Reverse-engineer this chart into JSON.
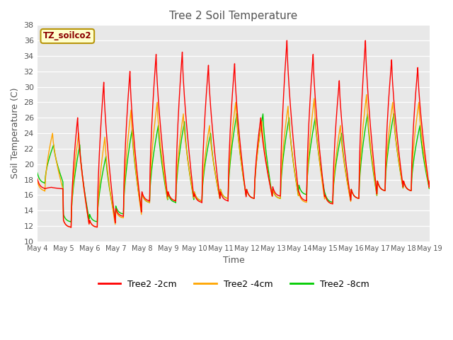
{
  "title": "Tree 2 Soil Temperature",
  "xlabel": "Time",
  "ylabel": "Soil Temperature (C)",
  "ylim": [
    10,
    38
  ],
  "yticks": [
    10,
    12,
    14,
    16,
    18,
    20,
    22,
    24,
    26,
    28,
    30,
    32,
    34,
    36,
    38
  ],
  "legend_label": "TZ_soilco2",
  "series_labels": [
    "Tree2 -2cm",
    "Tree2 -4cm",
    "Tree2 -8cm"
  ],
  "series_colors": [
    "#ff0000",
    "#ffa500",
    "#00cc00"
  ],
  "fig_bg": "#ffffff",
  "plot_bg": "#e8e8e8",
  "start_day": 4,
  "end_day": 19,
  "n_days": 15,
  "ppd": 48,
  "peaks_2cm": [
    17.0,
    26.0,
    30.6,
    32.0,
    34.2,
    34.5,
    32.8,
    33.0,
    26.0,
    36.0,
    34.2,
    30.8,
    36.0,
    33.5,
    32.5
  ],
  "mins_2cm": [
    16.8,
    11.8,
    11.8,
    13.2,
    15.2,
    15.2,
    15.0,
    15.2,
    15.5,
    15.8,
    15.2,
    14.8,
    15.5,
    16.5,
    16.5
  ],
  "peaks_4cm": [
    24.0,
    24.0,
    23.5,
    27.0,
    28.0,
    26.5,
    25.0,
    28.0,
    25.5,
    27.5,
    28.5,
    25.0,
    29.0,
    28.0,
    28.0
  ],
  "mins_4cm": [
    16.5,
    11.8,
    11.8,
    13.0,
    15.0,
    15.2,
    15.2,
    15.5,
    15.5,
    15.5,
    15.0,
    14.8,
    15.5,
    16.5,
    16.5
  ],
  "peaks_8cm": [
    22.5,
    22.5,
    21.0,
    24.5,
    25.0,
    25.5,
    24.0,
    26.5,
    26.5,
    26.0,
    26.0,
    24.0,
    26.5,
    26.5,
    25.0
  ],
  "mins_8cm": [
    17.5,
    12.5,
    12.5,
    13.5,
    15.0,
    15.0,
    15.2,
    15.5,
    15.5,
    15.5,
    16.0,
    15.0,
    15.5,
    16.5,
    16.5
  ],
  "peak_hour_2cm": 13,
  "peak_hour_4cm": 14,
  "peak_hour_8cm": 15
}
